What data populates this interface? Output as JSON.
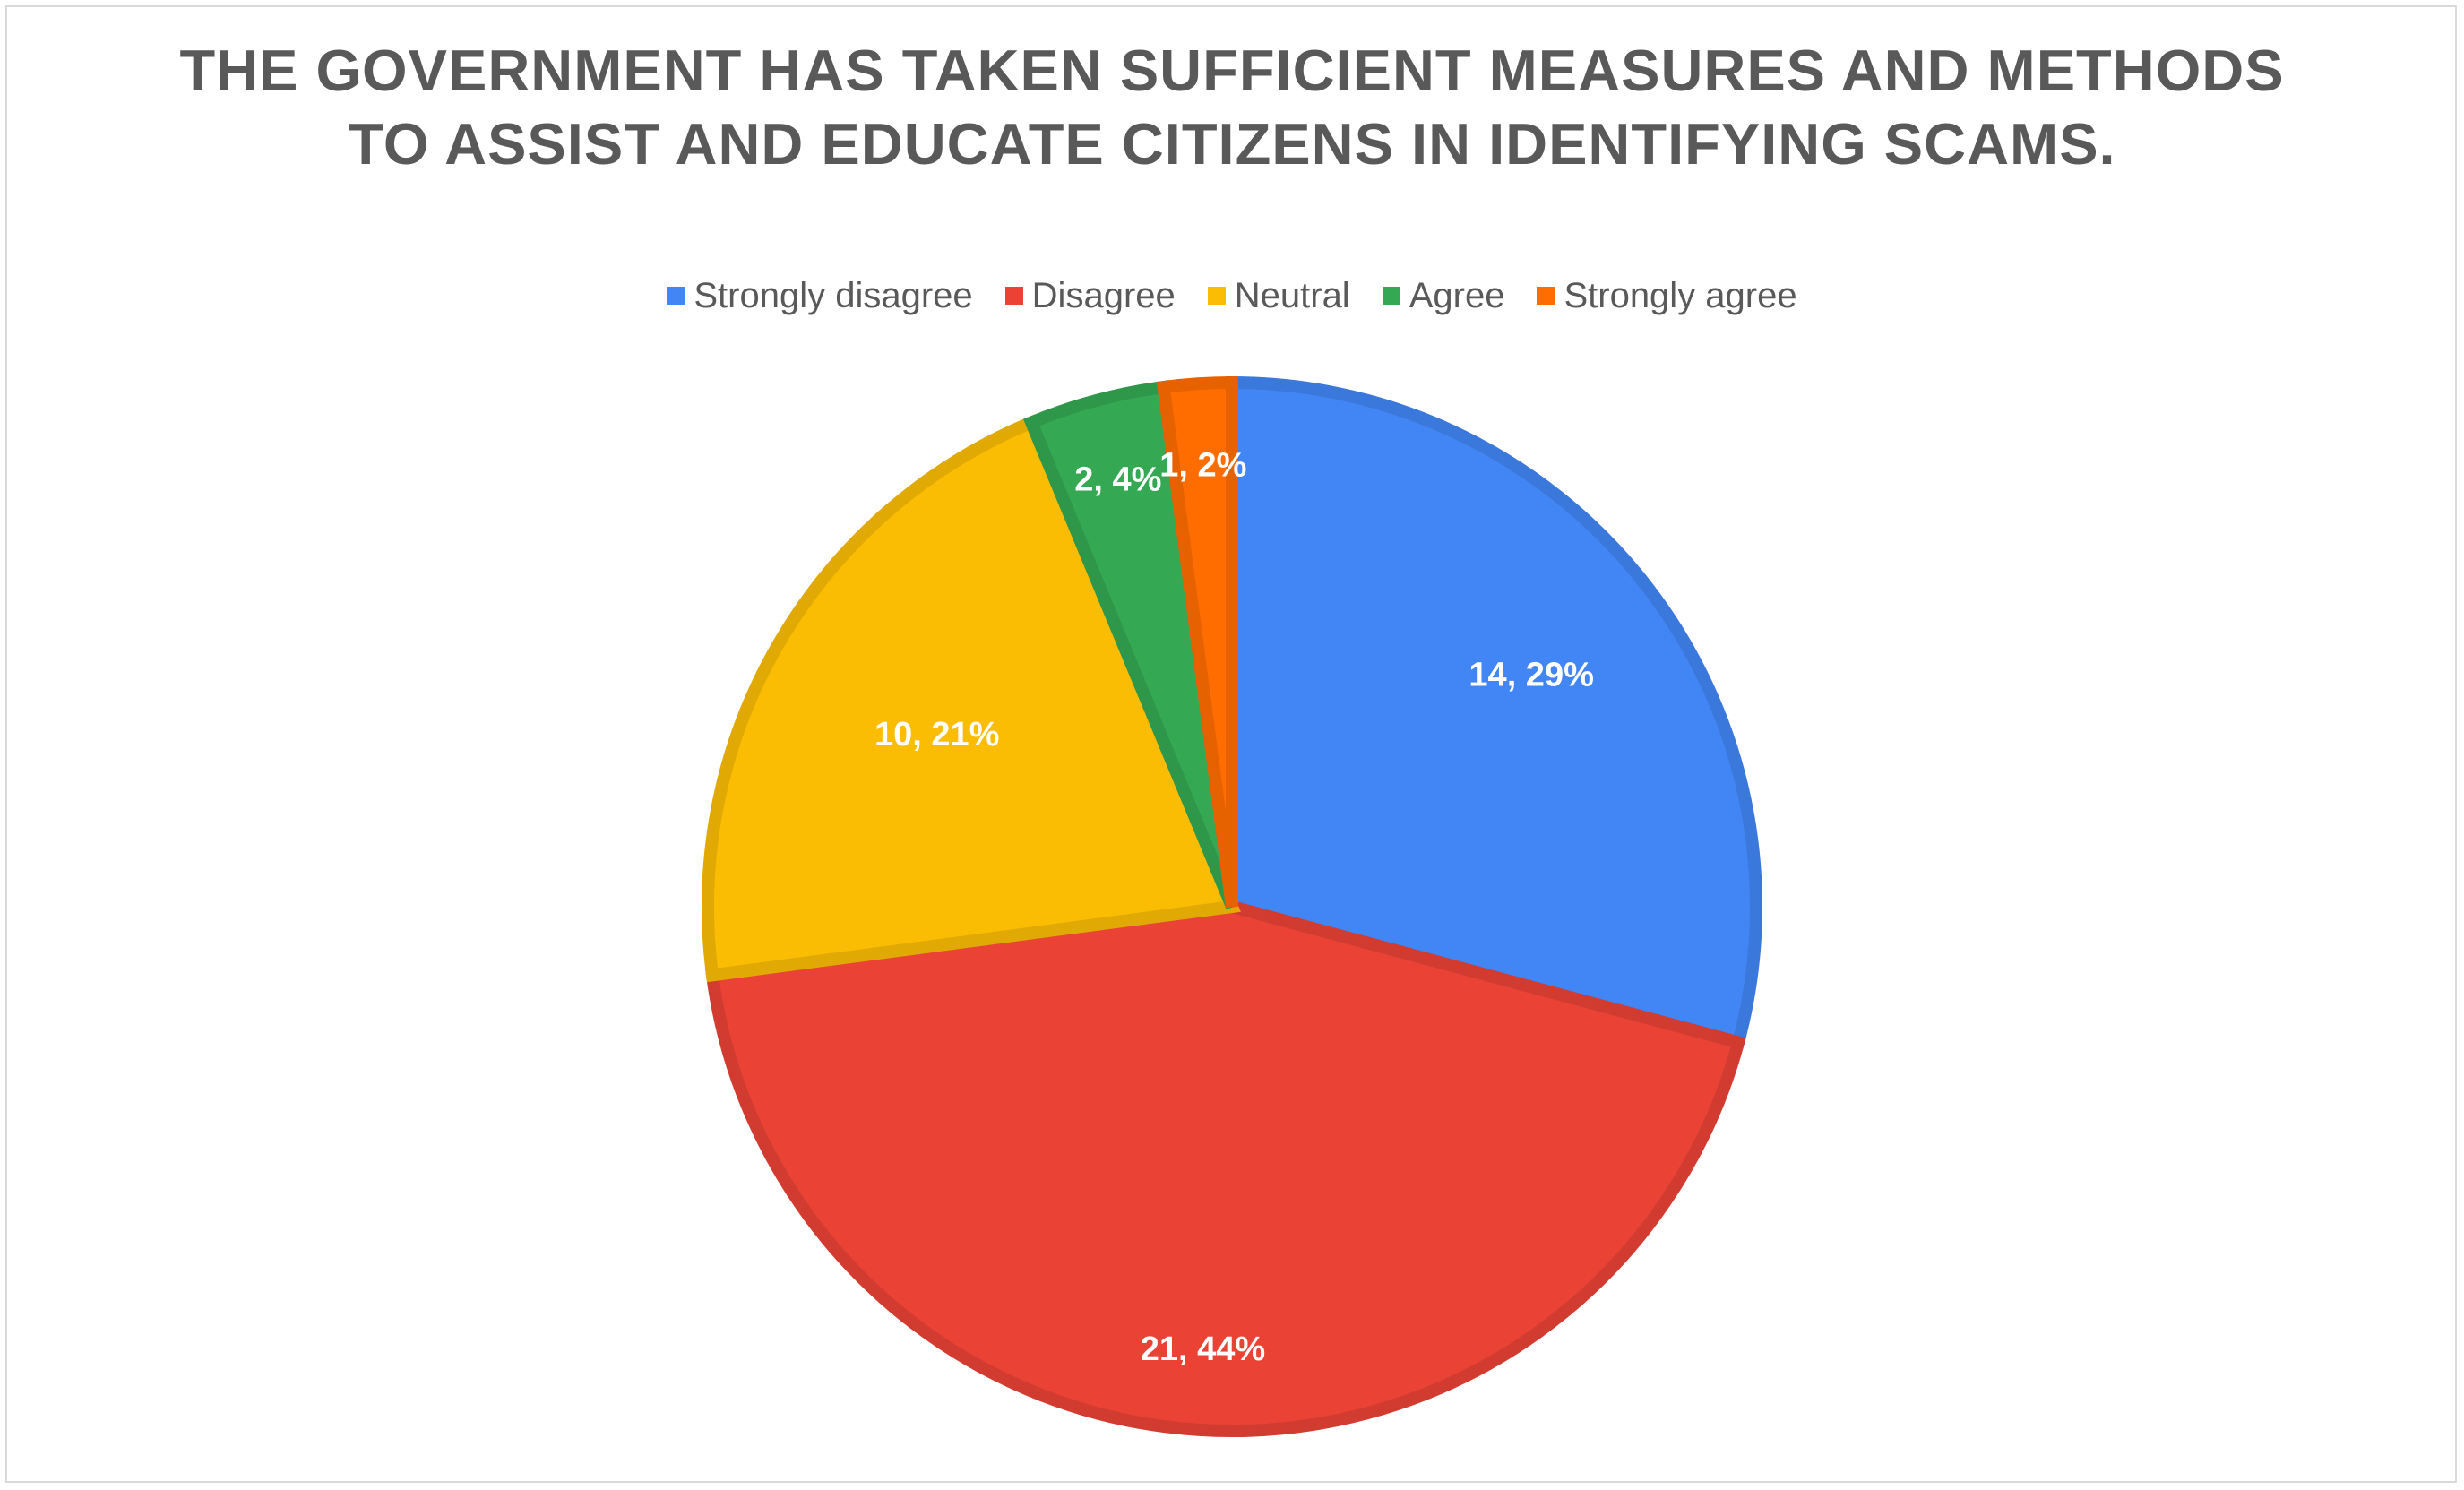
{
  "chart_data": {
    "type": "pie",
    "title": "THE GOVERNMENT HAS TAKEN SUFFICIENT MEASURES AND METHODS TO ASSIST AND EDUCATE CITIZENS IN IDENTIFYING SCAMS.",
    "legend_position": "top",
    "categories": [
      "Strongly disagree",
      "Disagree",
      "Neutral",
      "Agree",
      "Strongly agree"
    ],
    "values": [
      14,
      21,
      10,
      2,
      1
    ],
    "labels": [
      "14, 29%",
      "21, 44%",
      "10, 21%",
      "2, 4%",
      "1, 2%"
    ],
    "colors": [
      "#4285f4",
      "#ea4335",
      "#fbbc04",
      "#34a853",
      "#ff6d01"
    ],
    "border_colors": [
      "#3b78dc",
      "#d23c30",
      "#e1a904",
      "#2f9749",
      "#e66201"
    ]
  }
}
